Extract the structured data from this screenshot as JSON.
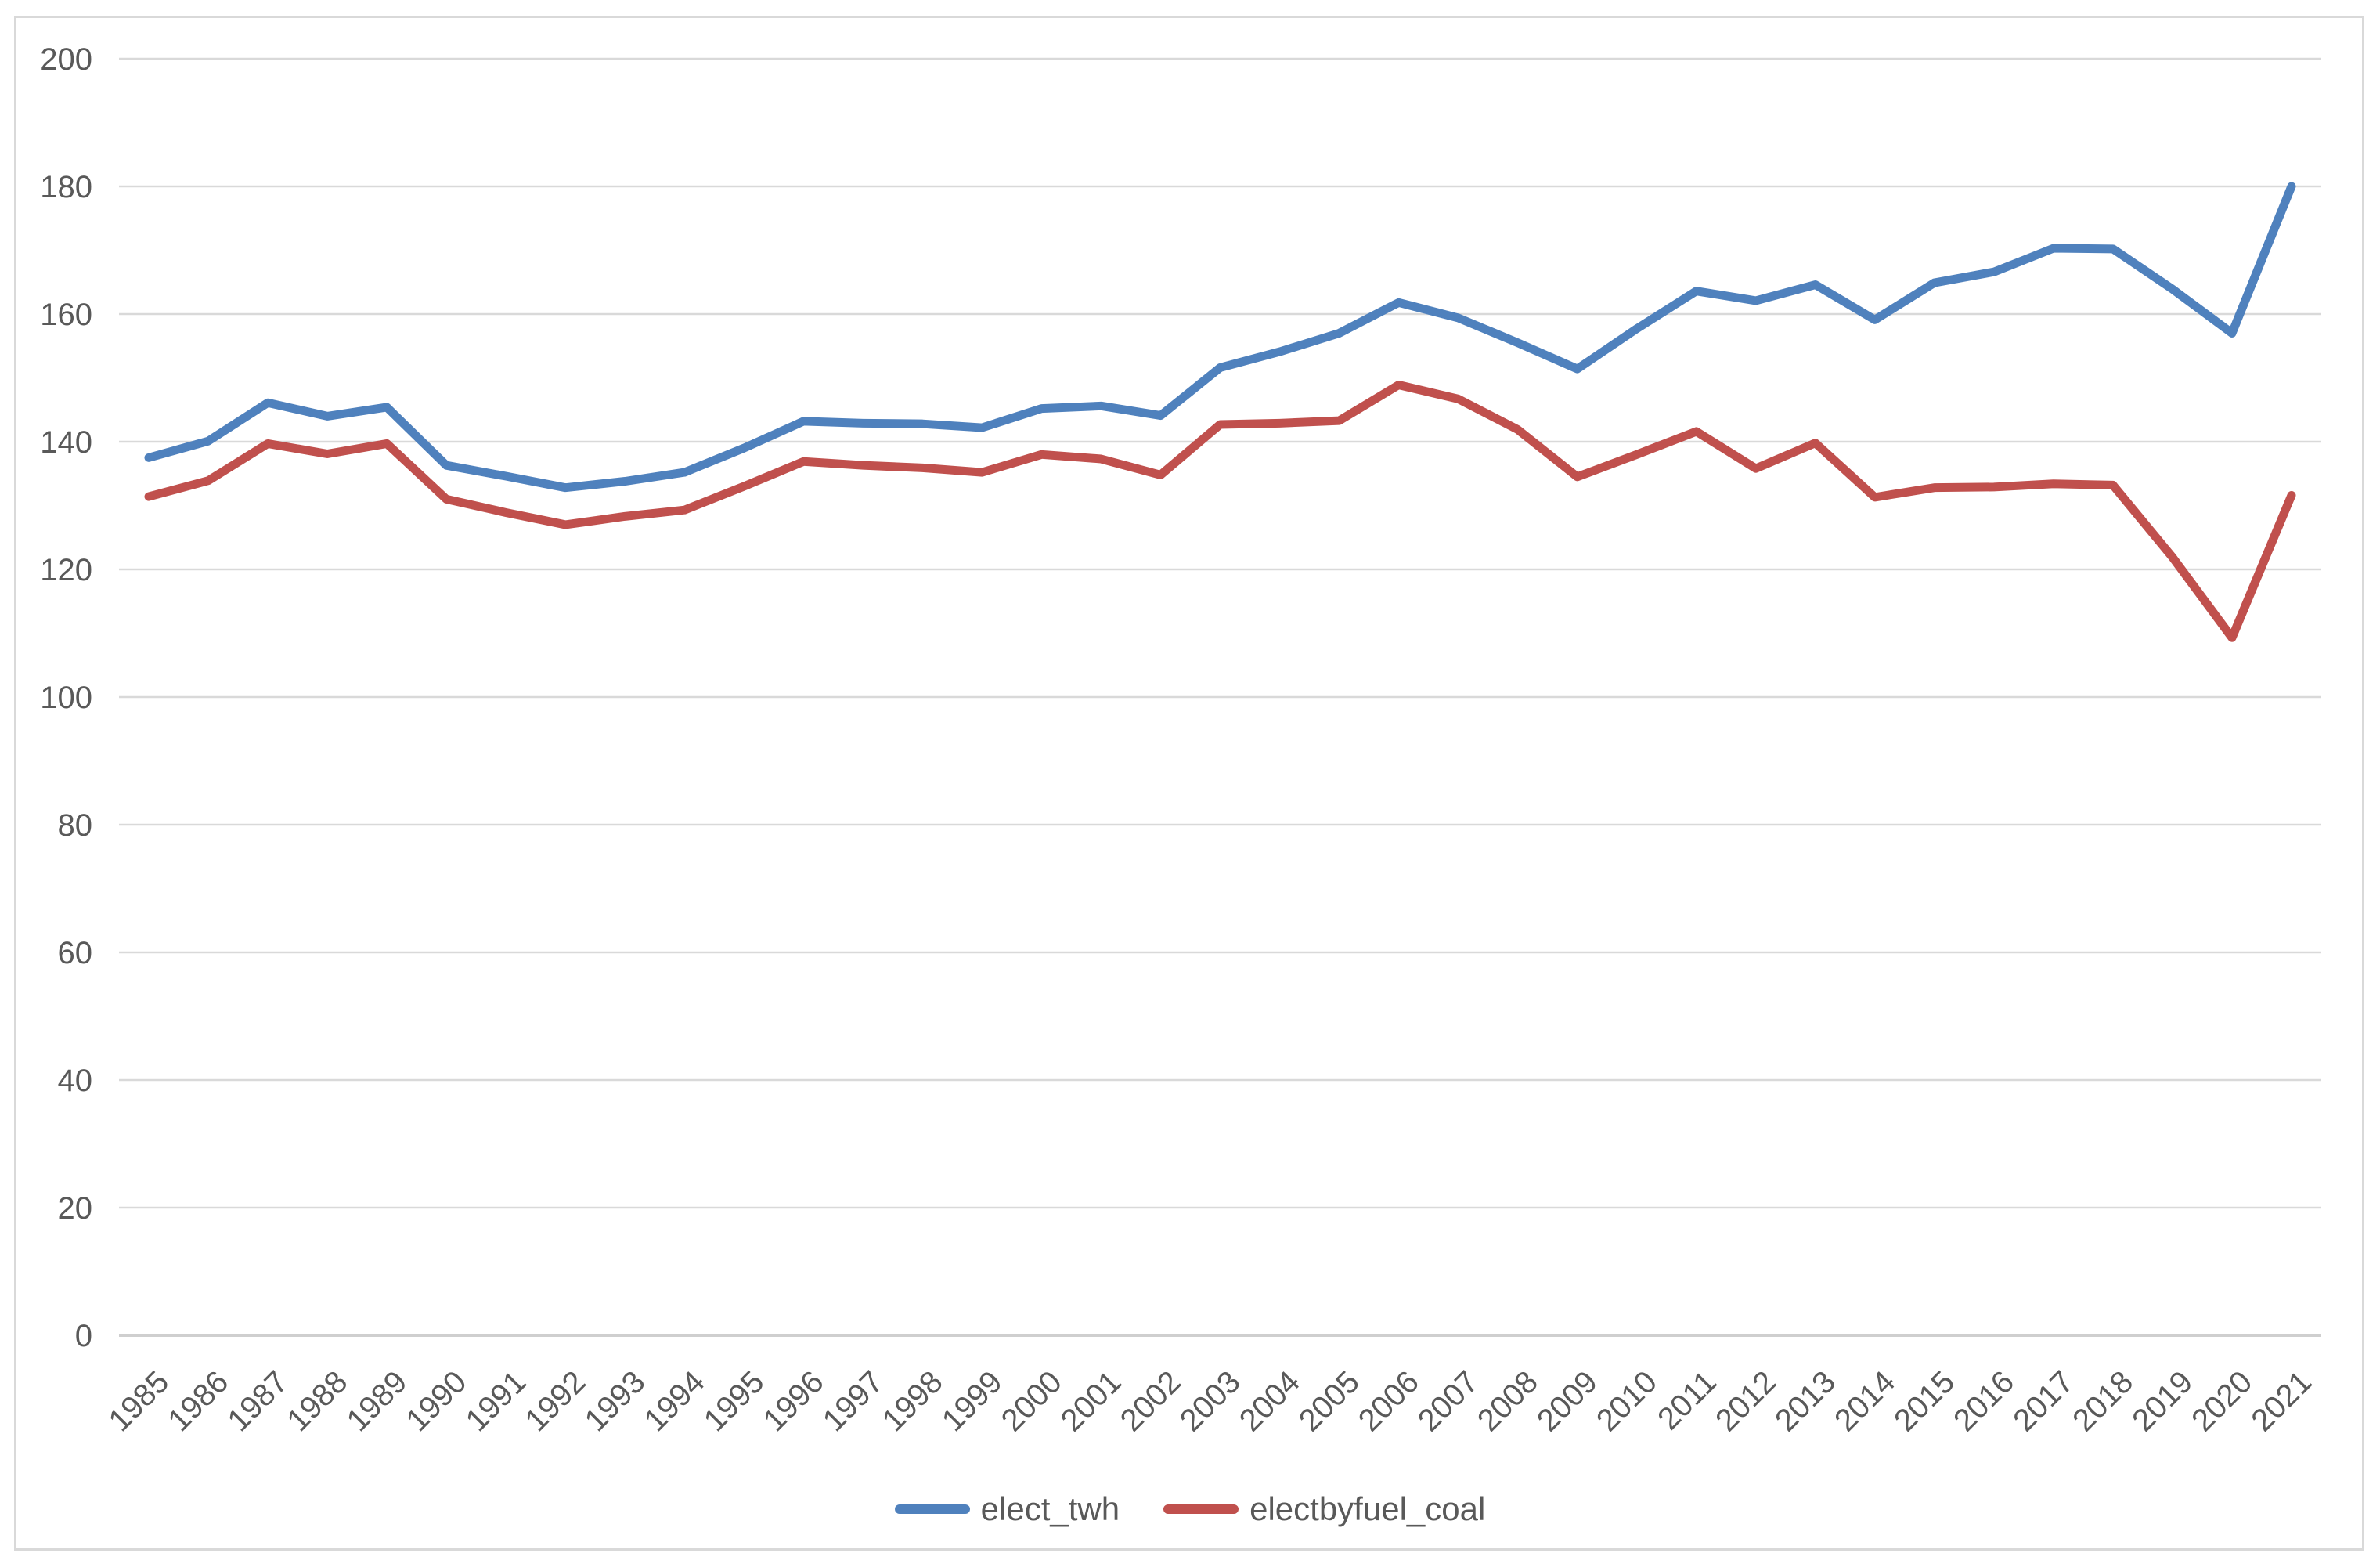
{
  "chart_data": {
    "type": "line",
    "categories": [
      "1985",
      "1986",
      "1987",
      "1988",
      "1989",
      "1990",
      "1991",
      "1992",
      "1993",
      "1994",
      "1995",
      "1996",
      "1997",
      "1998",
      "1999",
      "2000",
      "2001",
      "2002",
      "2003",
      "2004",
      "2005",
      "2006",
      "2007",
      "2008",
      "2009",
      "2010",
      "2011",
      "2012",
      "2013",
      "2014",
      "2015",
      "2016",
      "2017",
      "2018",
      "2019",
      "2020",
      "2021"
    ],
    "series": [
      {
        "name": "elect_twh",
        "color": "#4F81BD",
        "values": [
          137.5,
          140.1,
          146.1,
          144.0,
          145.4,
          136.3,
          134.6,
          132.8,
          133.8,
          135.2,
          139.0,
          143.2,
          142.9,
          142.8,
          142.2,
          145.2,
          145.6,
          144.1,
          151.6,
          154.1,
          157.0,
          161.8,
          159.4,
          155.5,
          151.4,
          157.7,
          163.6,
          162.1,
          164.6,
          159.1,
          164.9,
          166.6,
          170.3,
          170.2,
          163.9,
          157.0,
          180.0
        ]
      },
      {
        "name": "electbyfuel_coal",
        "color": "#C0504D",
        "values": [
          131.4,
          133.9,
          139.7,
          138.1,
          139.7,
          131.0,
          128.9,
          127.0,
          128.3,
          129.3,
          133.0,
          136.9,
          136.3,
          135.9,
          135.2,
          138.0,
          137.3,
          134.8,
          142.7,
          142.9,
          143.3,
          148.9,
          146.7,
          141.9,
          134.5,
          138.0,
          141.6,
          135.8,
          139.8,
          131.3,
          132.8,
          132.9,
          133.4,
          133.2,
          121.9,
          109.3,
          131.6
        ]
      }
    ],
    "title": "",
    "xlabel": "",
    "ylabel": "",
    "ylim": [
      0,
      200
    ],
    "ytick_step": 20,
    "grid": true,
    "legend_position": "bottom",
    "colors": {
      "gridline": "#D9D9D9",
      "axis_line": "#CFCFCF",
      "tick_label": "#595959",
      "frame_border": "#D9D9D9"
    }
  }
}
